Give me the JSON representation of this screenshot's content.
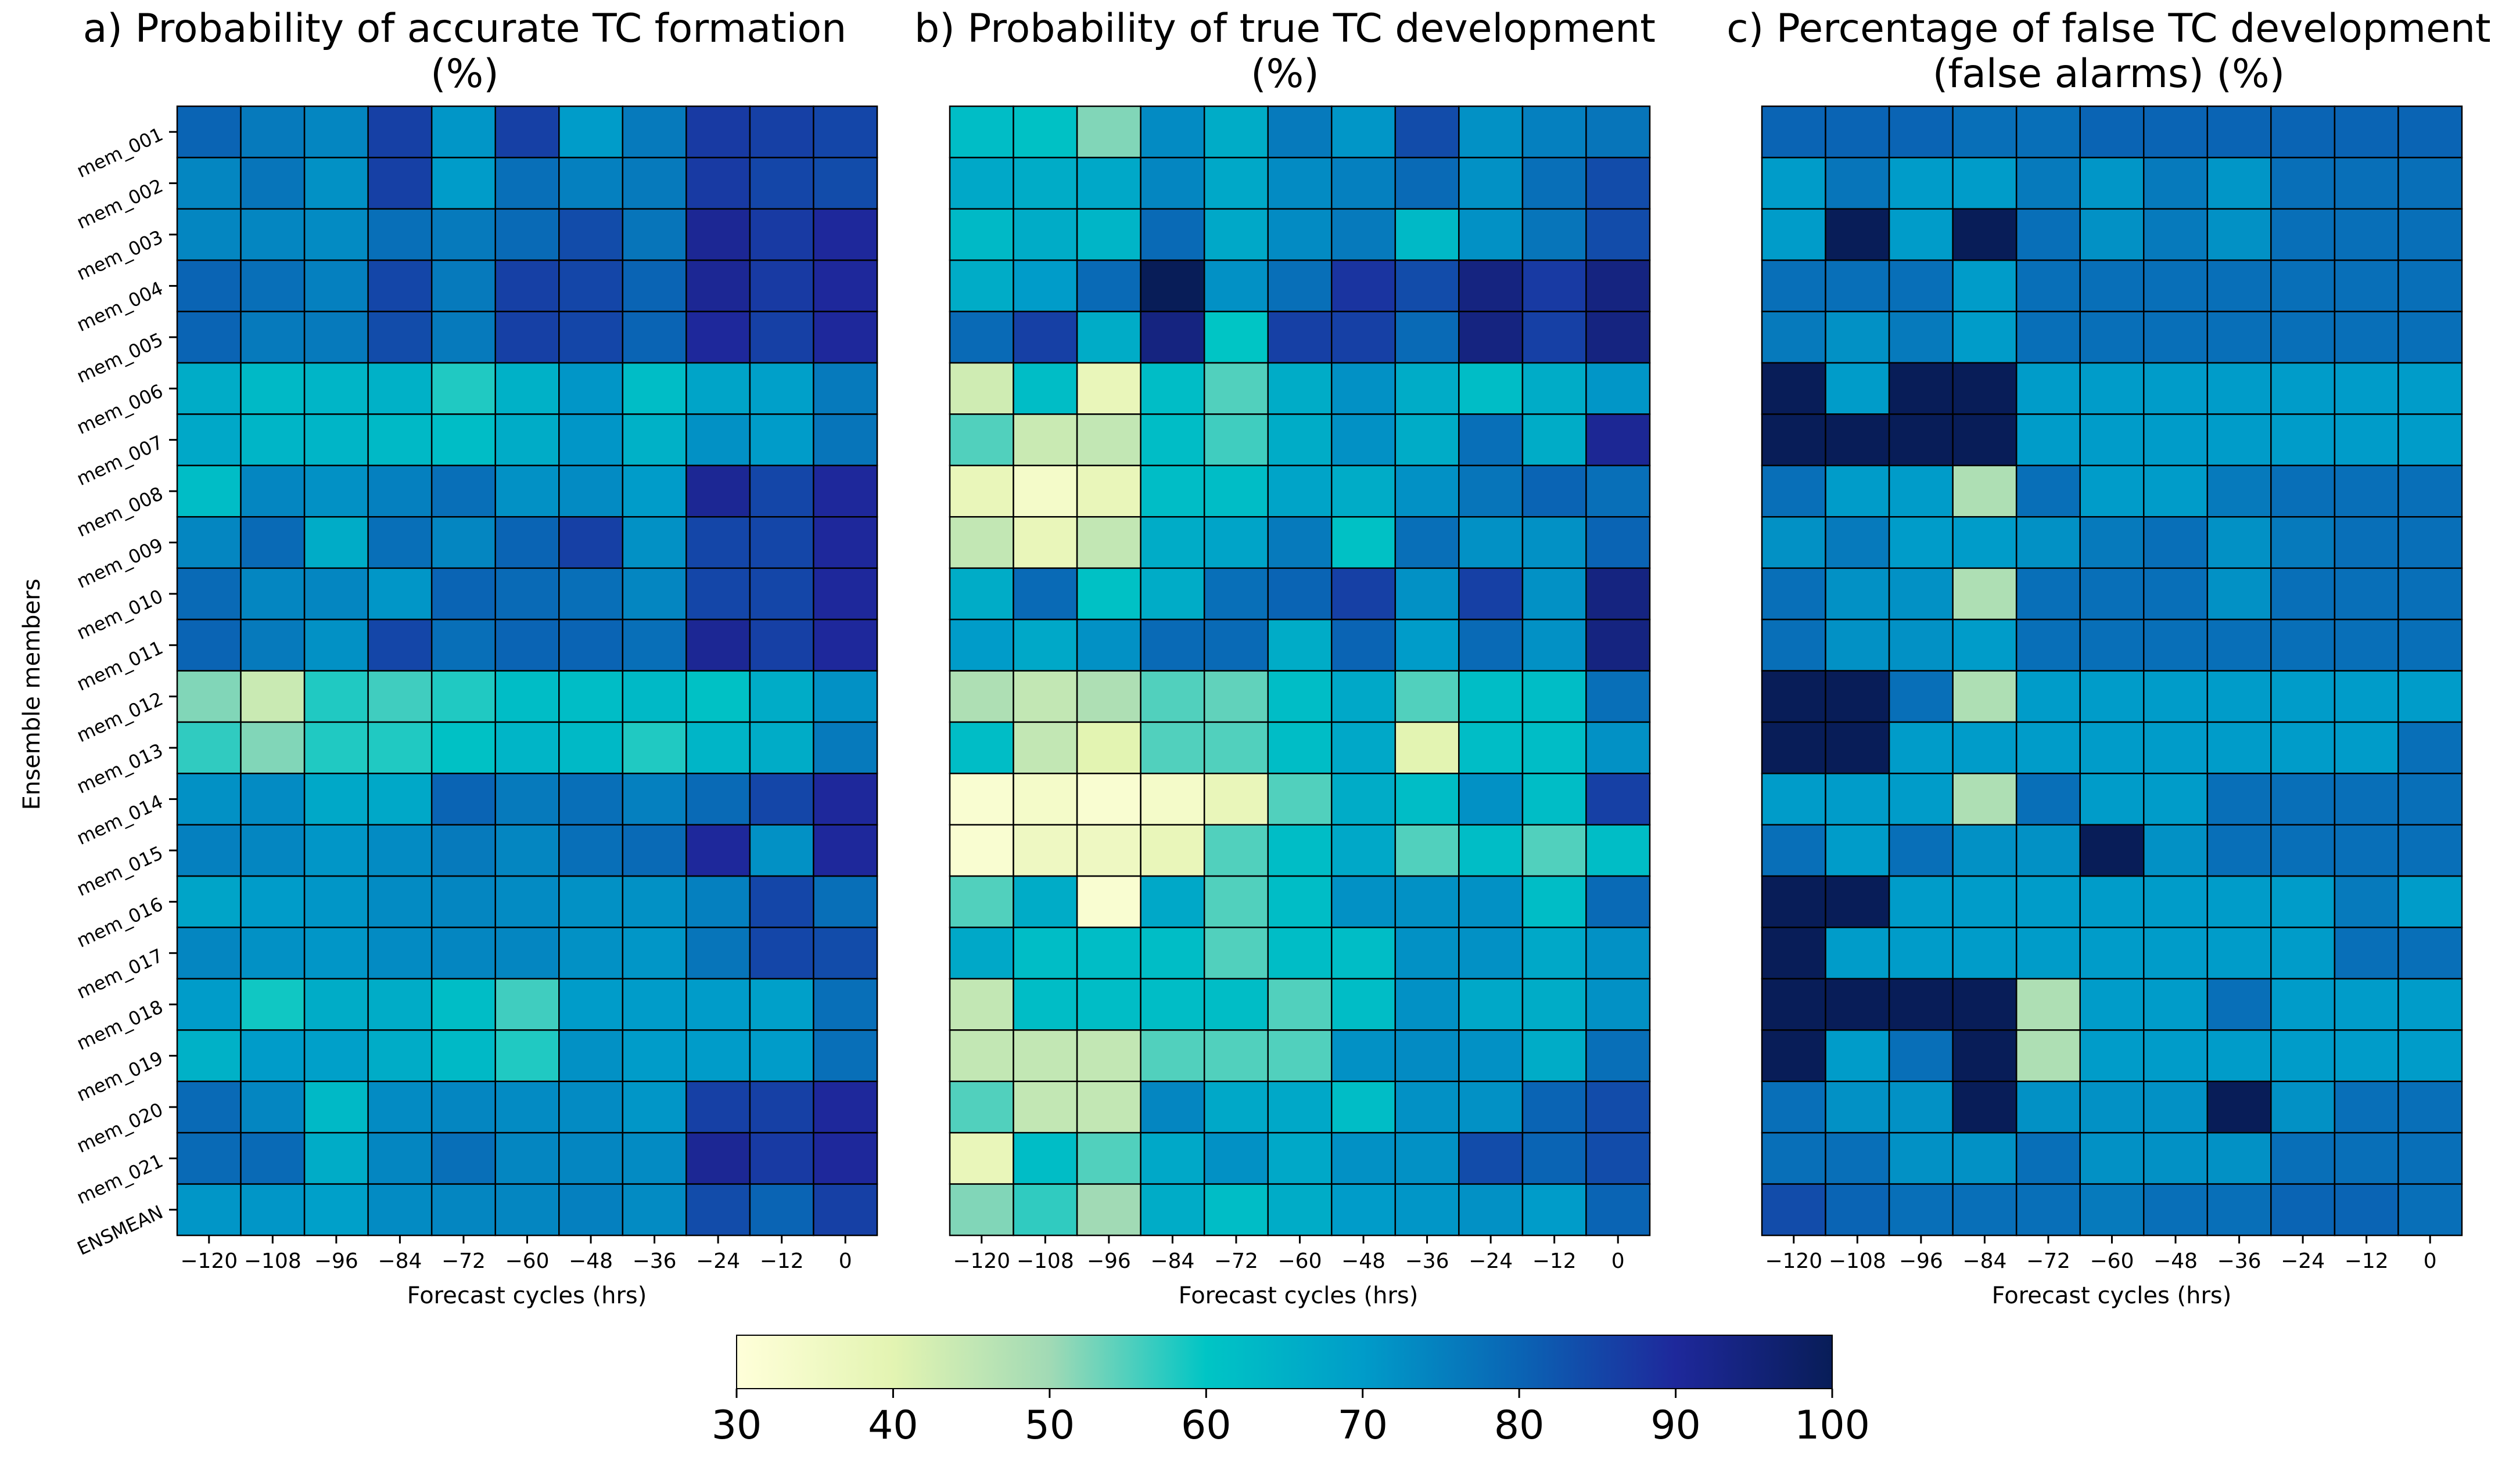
{
  "colorbar": {
    "min": 30,
    "max": 100,
    "ticks": [
      30,
      40,
      50,
      60,
      70,
      80,
      90,
      100
    ],
    "stops": [
      {
        "v": 30,
        "c": "#ffffd9"
      },
      {
        "v": 40,
        "c": "#e3f4b2"
      },
      {
        "v": 50,
        "c": "#a1dab5"
      },
      {
        "v": 60,
        "c": "#00c5c5"
      },
      {
        "v": 70,
        "c": "#009cc9"
      },
      {
        "v": 80,
        "c": "#0a64b4"
      },
      {
        "v": 90,
        "c": "#1e289b"
      },
      {
        "v": 100,
        "c": "#081d58"
      }
    ]
  },
  "chart_data": [
    {
      "type": "heatmap",
      "title_line1": "a) Probability of accurate TC formation",
      "title_line2": "(%)",
      "xlabel": "Forecast cycles (hrs)",
      "ylabel": "Ensemble members",
      "x": [
        "−120",
        "−108",
        "−96",
        "−84",
        "−72",
        "−60",
        "−48",
        "−36",
        "−24",
        "−12",
        "0"
      ],
      "y": [
        "mem_001",
        "mem_002",
        "mem_003",
        "mem_004",
        "mem_005",
        "mem_006",
        "mem_007",
        "mem_008",
        "mem_009",
        "mem_010",
        "mem_011",
        "mem_012",
        "mem_013",
        "mem_014",
        "mem_015",
        "mem_016",
        "mem_017",
        "mem_018",
        "mem_019",
        "mem_020",
        "mem_021",
        "ENSMEAN"
      ],
      "vmin": 30,
      "vmax": 100,
      "values": [
        [
          80,
          76,
          74,
          86,
          71,
          86,
          70,
          76,
          87,
          86,
          85
        ],
        [
          74,
          77,
          72,
          86,
          70,
          78,
          75,
          76,
          87,
          85,
          84
        ],
        [
          74,
          74,
          73,
          78,
          76,
          79,
          84,
          77,
          91,
          87,
          90
        ],
        [
          80,
          78,
          75,
          85,
          76,
          86,
          85,
          80,
          91,
          87,
          90
        ],
        [
          80,
          76,
          76,
          84,
          76,
          86,
          85,
          80,
          90,
          86,
          90
        ],
        [
          66,
          63,
          64,
          65,
          58,
          65,
          71,
          62,
          68,
          69,
          76
        ],
        [
          67,
          64,
          64,
          63,
          62,
          66,
          71,
          65,
          72,
          70,
          77
        ],
        [
          62,
          74,
          72,
          75,
          78,
          72,
          73,
          70,
          91,
          85,
          90
        ],
        [
          74,
          79,
          66,
          78,
          74,
          80,
          86,
          72,
          85,
          85,
          90
        ],
        [
          79,
          74,
          74,
          71,
          80,
          79,
          78,
          74,
          85,
          85,
          90
        ],
        [
          80,
          76,
          72,
          85,
          78,
          80,
          80,
          78,
          91,
          86,
          90
        ],
        [
          52,
          44,
          58,
          56,
          58,
          62,
          62,
          63,
          61,
          66,
          72
        ],
        [
          57,
          52,
          58,
          58,
          61,
          64,
          63,
          58,
          64,
          66,
          76
        ],
        [
          72,
          73,
          67,
          67,
          80,
          76,
          78,
          75,
          79,
          85,
          90
        ],
        [
          75,
          74,
          71,
          73,
          76,
          74,
          78,
          79,
          90,
          72,
          90
        ],
        [
          68,
          70,
          71,
          73,
          74,
          73,
          72,
          72,
          75,
          85,
          78
        ],
        [
          74,
          72,
          71,
          73,
          74,
          74,
          72,
          71,
          77,
          85,
          84
        ],
        [
          70,
          59,
          66,
          66,
          62,
          56,
          70,
          70,
          70,
          69,
          78
        ],
        [
          65,
          70,
          69,
          66,
          63,
          58,
          72,
          70,
          70,
          70,
          78
        ],
        [
          79,
          74,
          63,
          73,
          74,
          73,
          73,
          71,
          86,
          86,
          90
        ],
        [
          79,
          79,
          66,
          74,
          78,
          74,
          74,
          73,
          91,
          87,
          90
        ],
        [
          71,
          71,
          69,
          73,
          74,
          74,
          75,
          73,
          84,
          80,
          86
        ]
      ]
    },
    {
      "type": "heatmap",
      "title_line1": "b) Probability of true TC development",
      "title_line2": "(%)",
      "xlabel": "Forecast cycles (hrs)",
      "ylabel": "",
      "x": [
        "−120",
        "−108",
        "−96",
        "−84",
        "−72",
        "−60",
        "−48",
        "−36",
        "−24",
        "−12",
        "0"
      ],
      "y": [],
      "vmin": 30,
      "vmax": 100,
      "values": [
        [
          62,
          61,
          52,
          73,
          66,
          76,
          71,
          84,
          72,
          75,
          77
        ],
        [
          67,
          66,
          67,
          74,
          67,
          73,
          75,
          79,
          72,
          78,
          84
        ],
        [
          63,
          66,
          64,
          79,
          67,
          73,
          76,
          63,
          72,
          77,
          84
        ],
        [
          66,
          70,
          79,
          100,
          72,
          78,
          88,
          84,
          94,
          87,
          94
        ],
        [
          79,
          86,
          66,
          94,
          60,
          86,
          86,
          79,
          94,
          86,
          94
        ],
        [
          43,
          62,
          38,
          62,
          55,
          66,
          72,
          66,
          62,
          66,
          71
        ],
        [
          55,
          44,
          45,
          62,
          56,
          66,
          72,
          66,
          78,
          66,
          91
        ],
        [
          38,
          34,
          38,
          62,
          62,
          68,
          66,
          72,
          77,
          80,
          78
        ],
        [
          45,
          38,
          45,
          66,
          68,
          76,
          61,
          78,
          72,
          72,
          80
        ],
        [
          66,
          79,
          61,
          66,
          78,
          80,
          86,
          72,
          86,
          72,
          94
        ],
        [
          70,
          67,
          72,
          79,
          79,
          66,
          80,
          70,
          79,
          72,
          94
        ],
        [
          48,
          45,
          48,
          55,
          54,
          62,
          67,
          55,
          62,
          62,
          78
        ],
        [
          62,
          45,
          40,
          55,
          55,
          62,
          67,
          40,
          62,
          62,
          72
        ],
        [
          32,
          34,
          32,
          34,
          38,
          55,
          66,
          62,
          72,
          62,
          86
        ],
        [
          32,
          36,
          36,
          38,
          55,
          62,
          67,
          55,
          62,
          55,
          62
        ],
        [
          55,
          66,
          32,
          67,
          55,
          62,
          72,
          72,
          72,
          62,
          79
        ],
        [
          67,
          62,
          62,
          62,
          55,
          62,
          62,
          72,
          72,
          67,
          72
        ],
        [
          45,
          62,
          62,
          62,
          62,
          55,
          62,
          72,
          67,
          66,
          72
        ],
        [
          45,
          45,
          45,
          55,
          55,
          55,
          72,
          73,
          72,
          66,
          78
        ],
        [
          55,
          45,
          45,
          74,
          67,
          67,
          62,
          72,
          72,
          80,
          84
        ],
        [
          38,
          62,
          55,
          67,
          72,
          67,
          72,
          72,
          84,
          80,
          84
        ],
        [
          52,
          57,
          50,
          66,
          62,
          66,
          70,
          71,
          72,
          70,
          80
        ]
      ]
    },
    {
      "type": "heatmap",
      "title_line1": "c) Percentage of false TC development",
      "title_line2": "(false alarms) (%)",
      "xlabel": "Forecast cycles (hrs)",
      "ylabel": "",
      "x": [
        "−120",
        "−108",
        "−96",
        "−84",
        "−72",
        "−60",
        "−48",
        "−36",
        "−24",
        "−12",
        "0"
      ],
      "y": [],
      "vmin": 30,
      "vmax": 100,
      "values": [
        [
          80,
          80,
          80,
          78,
          78,
          80,
          80,
          80,
          80,
          80,
          80
        ],
        [
          70,
          77,
          70,
          70,
          76,
          71,
          76,
          71,
          78,
          78,
          78
        ],
        [
          70,
          100,
          70,
          100,
          78,
          72,
          76,
          72,
          78,
          78,
          78
        ],
        [
          78,
          78,
          78,
          70,
          78,
          78,
          78,
          78,
          78,
          78,
          78
        ],
        [
          76,
          72,
          76,
          70,
          78,
          78,
          78,
          78,
          78,
          78,
          78
        ],
        [
          100,
          70,
          100,
          100,
          70,
          70,
          70,
          70,
          70,
          70,
          70
        ],
        [
          100,
          100,
          100,
          100,
          70,
          70,
          70,
          70,
          70,
          70,
          70
        ],
        [
          78,
          70,
          70,
          48,
          78,
          70,
          70,
          76,
          78,
          78,
          78
        ],
        [
          72,
          76,
          70,
          70,
          72,
          76,
          78,
          72,
          76,
          78,
          78
        ],
        [
          78,
          72,
          72,
          48,
          78,
          78,
          78,
          72,
          78,
          78,
          78
        ],
        [
          78,
          72,
          72,
          70,
          78,
          78,
          78,
          78,
          78,
          78,
          78
        ],
        [
          100,
          100,
          78,
          48,
          70,
          70,
          70,
          70,
          70,
          70,
          70
        ],
        [
          100,
          100,
          70,
          70,
          70,
          70,
          70,
          70,
          70,
          70,
          78
        ],
        [
          70,
          70,
          70,
          48,
          78,
          70,
          70,
          78,
          78,
          78,
          78
        ],
        [
          78,
          70,
          78,
          72,
          72,
          100,
          72,
          78,
          78,
          78,
          78
        ],
        [
          100,
          100,
          70,
          70,
          70,
          70,
          70,
          70,
          70,
          76,
          70
        ],
        [
          100,
          70,
          70,
          70,
          70,
          70,
          70,
          70,
          70,
          78,
          78
        ],
        [
          100,
          100,
          100,
          100,
          48,
          70,
          70,
          78,
          70,
          70,
          70
        ],
        [
          100,
          70,
          78,
          100,
          48,
          70,
          70,
          70,
          70,
          70,
          70
        ],
        [
          78,
          72,
          72,
          100,
          72,
          72,
          72,
          100,
          72,
          78,
          78
        ],
        [
          78,
          78,
          72,
          72,
          78,
          72,
          72,
          72,
          78,
          78,
          78
        ],
        [
          84,
          80,
          78,
          78,
          78,
          76,
          78,
          78,
          80,
          80,
          78
        ]
      ]
    }
  ]
}
